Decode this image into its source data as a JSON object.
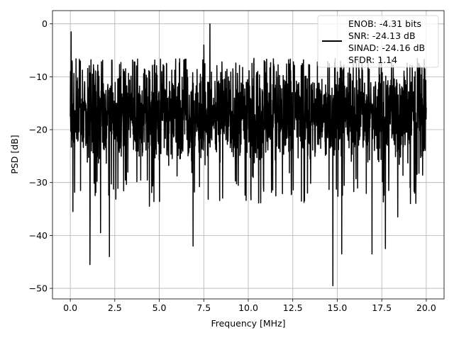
{
  "chart_data": {
    "type": "line",
    "title": "",
    "xlabel": "Frequency [MHz]",
    "ylabel": "PSD [dB]",
    "xlim": [
      -1.0,
      21.0
    ],
    "ylim": [
      -52.0,
      2.5
    ],
    "xticks": [
      0.0,
      2.5,
      5.0,
      7.5,
      10.0,
      12.5,
      15.0,
      17.5,
      20.0
    ],
    "xtick_labels": [
      "0.0",
      "2.5",
      "5.0",
      "7.5",
      "10.0",
      "12.5",
      "15.0",
      "17.5",
      "20.0"
    ],
    "yticks": [
      0,
      -10,
      -20,
      -30,
      -40,
      -50
    ],
    "ytick_labels": [
      "0",
      "−10",
      "−20",
      "−30",
      "−40",
      "−50"
    ],
    "grid": true,
    "legend_placement": "top-right",
    "legend_lines": [
      "ENOB: -4.31 bits",
      "SNR: -24.13 dB",
      "SINAD: -24.16 dB",
      "SFDR: 1.14"
    ],
    "series": [
      {
        "color": "#000000",
        "x_start": 0.0,
        "x_end": 20.0,
        "points": 2048,
        "typical_range": [
          -27,
          -7
        ],
        "peaks": [
          [
            0.05,
            -1.5
          ],
          [
            7.85,
            0.0
          ],
          [
            7.5,
            -4.0
          ],
          [
            0.1,
            -7.0
          ]
        ],
        "dips": [
          [
            1.1,
            -45.5
          ],
          [
            14.75,
            -49.5
          ],
          [
            6.9,
            -42.0
          ],
          [
            2.2,
            -44.0
          ],
          [
            17.7,
            -42.5
          ],
          [
            15.25,
            -43.5
          ],
          [
            16.95,
            -43.5
          ],
          [
            1.7,
            -39.5
          ],
          [
            4.45,
            -39.0
          ],
          [
            0.15,
            -35.5
          ],
          [
            4.45,
            -34.5
          ],
          [
            18.4,
            -36.5
          ]
        ]
      }
    ]
  }
}
